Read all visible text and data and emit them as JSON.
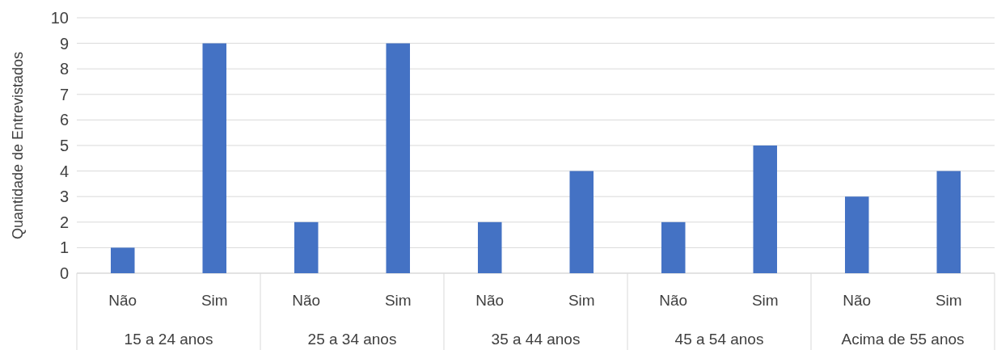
{
  "chart_data": {
    "type": "bar",
    "ylabel": "Quantidade de Entrevistados",
    "categories": [
      "Não",
      "Sim",
      "Não",
      "Sim",
      "Não",
      "Sim",
      "Não",
      "Sim",
      "Não",
      "Sim"
    ],
    "values": [
      1,
      9,
      2,
      9,
      2,
      4,
      2,
      5,
      3,
      4
    ],
    "color": "#4472c4",
    "ylim": [
      0,
      10
    ],
    "yticks": [
      0,
      1,
      2,
      3,
      4,
      5,
      6,
      7,
      8,
      9,
      10
    ],
    "grid": "y",
    "annotations": [
      "15 a 24 anos",
      "25 a 34 anos",
      "35 a 44 anos",
      "45 a 54 anos",
      "Acima de 55 anos"
    ]
  }
}
